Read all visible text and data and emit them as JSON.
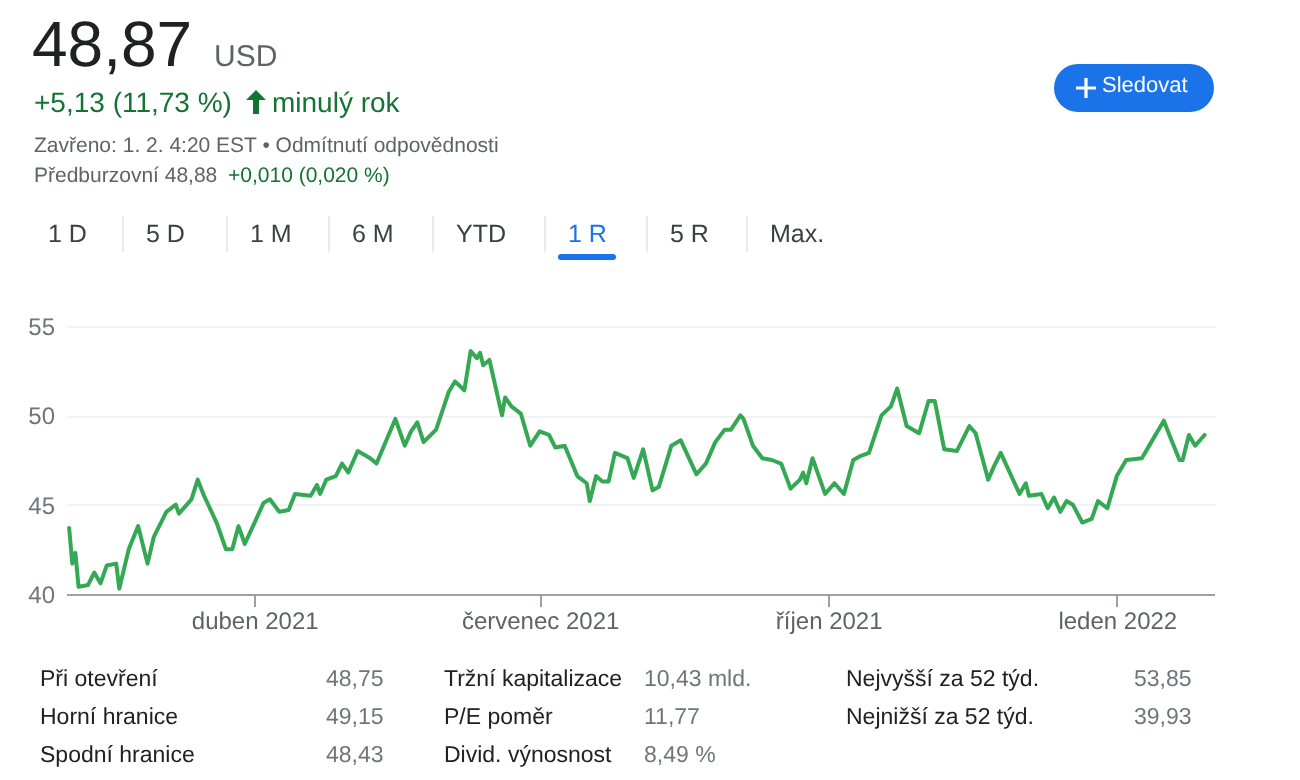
{
  "chart_data": {
    "type": "line",
    "title": "48,87",
    "annotations": [
      "USD",
      "+5,13 (11,73 %)",
      "minulý rok",
      "Zavřeno: 1. 2. 4:20 EST • Odmítnutí odpovědnosti",
      "Předburzovní 48,88",
      "+0,010 (0,020 %)",
      "Sledovat",
      "1 D",
      "5 D",
      "1 M",
      "6 M",
      "YTD",
      "1 R",
      "5 R",
      "Max.",
      "Při otevření",
      "48,75",
      "Horní hranice",
      "49,15",
      "Spodní hranice",
      "48,43",
      "Tržní kapitalizace",
      "10,43 mld.",
      "P/E poměr",
      "11,77",
      "Divid. výnosnost",
      "8,49 %",
      "Nejvyšší za 52 týd.",
      "53,85",
      "Nejnižší za 52 týd.",
      "39,93"
    ],
    "x": [
      "2021-02-01",
      "2021-02-02",
      "2021-02-03",
      "2021-02-04",
      "2021-02-07",
      "2021-02-09",
      "2021-02-11",
      "2021-02-13",
      "2021-02-16",
      "2021-02-17",
      "2021-02-20",
      "2021-02-23",
      "2021-02-26",
      "2021-02-28",
      "2021-03-04",
      "2021-03-07",
      "2021-03-08",
      "2021-03-12",
      "2021-03-14",
      "2021-03-16",
      "2021-03-20",
      "2021-03-23",
      "2021-03-25",
      "2021-03-27",
      "2021-03-29",
      "2021-04-04",
      "2021-04-06",
      "2021-04-09",
      "2021-04-12",
      "2021-04-14",
      "2021-04-19",
      "2021-04-21",
      "2021-04-22",
      "2021-04-24",
      "2021-04-27",
      "2021-04-29",
      "2021-05-01",
      "2021-05-04",
      "2021-05-08",
      "2021-05-10",
      "2021-05-16",
      "2021-05-19",
      "2021-05-21",
      "2021-05-23",
      "2021-05-25",
      "2021-05-29",
      "2021-06-02",
      "2021-06-04",
      "2021-06-07",
      "2021-06-09",
      "2021-06-11",
      "2021-06-12",
      "2021-06-13",
      "2021-06-15",
      "2021-06-19",
      "2021-06-20",
      "2021-06-22",
      "2021-06-25",
      "2021-06-28",
      "2021-07-01",
      "2021-07-04",
      "2021-07-06",
      "2021-07-09",
      "2021-07-13",
      "2021-07-16",
      "2021-07-17",
      "2021-07-19",
      "2021-07-21",
      "2021-07-23",
      "2021-07-25",
      "2021-07-29",
      "2021-07-31",
      "2021-08-03",
      "2021-08-06",
      "2021-08-08",
      "2021-08-12",
      "2021-08-15",
      "2021-08-20",
      "2021-08-23",
      "2021-08-26",
      "2021-08-29",
      "2021-08-31",
      "2021-09-03",
      "2021-09-04",
      "2021-09-07",
      "2021-09-10",
      "2021-09-13",
      "2021-09-16",
      "2021-09-19",
      "2021-09-22",
      "2021-09-23",
      "2021-09-24",
      "2021-09-26",
      "2021-09-30",
      "2021-10-03",
      "2021-10-06",
      "2021-10-09",
      "2021-10-11",
      "2021-10-14",
      "2021-10-18",
      "2021-10-21",
      "2021-10-23",
      "2021-10-26",
      "2021-10-30",
      "2021-11-02",
      "2021-11-04",
      "2021-11-07",
      "2021-11-11",
      "2021-11-15",
      "2021-11-17",
      "2021-11-21",
      "2021-11-23",
      "2021-11-25",
      "2021-12-01",
      "2021-12-03",
      "2021-12-04",
      "2021-12-08",
      "2021-12-10",
      "2021-12-12",
      "2021-12-14",
      "2021-12-16",
      "2021-12-18",
      "2021-12-21",
      "2021-12-24",
      "2021-12-26",
      "2021-12-29",
      "2022-01-01",
      "2022-01-04",
      "2022-01-09",
      "2022-01-12",
      "2022-01-16",
      "2022-01-18",
      "2022-01-21",
      "2022-01-22",
      "2022-01-24",
      "2022-01-26",
      "2022-01-29"
    ],
    "series": [
      {
        "color": "#34a853",
        "values": [
          43.7,
          41.7,
          42.3,
          40.4,
          40.5,
          41.2,
          40.6,
          41.6,
          41.7,
          40.3,
          42.5,
          43.8,
          41.7,
          43.2,
          44.6,
          45.0,
          44.5,
          45.3,
          46.4,
          45.5,
          44.0,
          42.5,
          42.5,
          43.8,
          42.8,
          45.1,
          45.3,
          44.6,
          44.7,
          45.6,
          45.5,
          46.1,
          45.6,
          46.4,
          46.6,
          47.3,
          46.8,
          48.0,
          47.6,
          47.3,
          49.8,
          48.3,
          49.1,
          49.6,
          48.5,
          49.2,
          51.3,
          51.9,
          51.4,
          53.6,
          53.2,
          53.5,
          52.8,
          53.1,
          50.0,
          51.0,
          50.5,
          50.1,
          48.3,
          49.1,
          48.9,
          48.2,
          48.3,
          46.6,
          46.2,
          45.2,
          46.6,
          46.3,
          46.3,
          47.9,
          47.6,
          46.5,
          48.1,
          45.8,
          46.0,
          48.3,
          48.6,
          46.7,
          47.3,
          48.5,
          49.2,
          49.2,
          50.0,
          49.8,
          48.3,
          47.6,
          47.5,
          47.3,
          45.9,
          46.4,
          46.8,
          46.2,
          47.6,
          45.6,
          46.2,
          45.6,
          47.5,
          47.7,
          47.9,
          50.0,
          50.5,
          51.5,
          49.4,
          49.0,
          50.8,
          50.8,
          48.1,
          48.0,
          49.4,
          49.0,
          46.4,
          47.2,
          47.9,
          45.6,
          46.2,
          45.5,
          45.6,
          44.8,
          45.4,
          44.6,
          45.2,
          45.0,
          44.0,
          44.2,
          45.2,
          44.8,
          46.6,
          47.5,
          47.6,
          48.5,
          49.7,
          48.8,
          47.5,
          47.5,
          48.9,
          48.3,
          48.9
        ]
      }
    ],
    "xlim": [
      "2021-01-31",
      "2022-02-01"
    ],
    "xticks": [
      {
        "value": "2021-04-01",
        "label": "duben 2021"
      },
      {
        "value": "2021-07-01",
        "label": "červenec 2021"
      },
      {
        "value": "2021-10-01",
        "label": "říjen 2021"
      },
      {
        "value": "2022-01-01",
        "label": "leden 2022"
      }
    ],
    "ylim": [
      40,
      55
    ],
    "yticks": [
      40,
      45,
      50,
      55
    ],
    "grid": "y"
  }
}
